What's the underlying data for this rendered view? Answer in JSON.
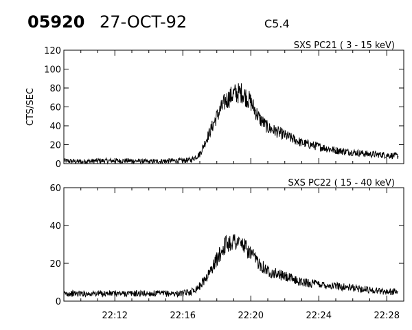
{
  "header": {
    "event_id": "05920",
    "date": "27-OCT-92",
    "goes_class": "C5.4"
  },
  "chart_data": [
    {
      "type": "line",
      "panel_label": "SXS PC21  (  3 - 15 keV)",
      "ylabel": "CTS/SEC",
      "xlabel": "",
      "xlim": [
        "22:09",
        "22:29"
      ],
      "ylim": [
        0,
        120
      ],
      "yticks": [
        0,
        20,
        40,
        60,
        80,
        100,
        120
      ],
      "grid": false,
      "series": [
        {
          "x": [
            "22:09",
            "22:10",
            "22:11",
            "22:12",
            "22:13",
            "22:14",
            "22:15",
            "22:16",
            "22:16:30",
            "22:17",
            "22:17:30",
            "22:18",
            "22:18:30",
            "22:19",
            "22:19:30",
            "22:20",
            "22:20:30",
            "22:21",
            "22:22",
            "22:23",
            "22:24",
            "22:25",
            "22:26",
            "22:27",
            "22:28",
            "22:28:40"
          ],
          "values": [
            3,
            2,
            3,
            3,
            3,
            2,
            3,
            3,
            4,
            10,
            30,
            50,
            66,
            74,
            75,
            65,
            48,
            38,
            30,
            22,
            18,
            14,
            12,
            10,
            9,
            8
          ]
        }
      ]
    },
    {
      "type": "line",
      "panel_label": "SXS PC22  ( 15 - 40 keV)",
      "ylabel": "",
      "xlabel": "",
      "xlim": [
        "22:09",
        "22:29"
      ],
      "ylim": [
        0,
        60
      ],
      "yticks": [
        0,
        20,
        40,
        60
      ],
      "xticks": [
        "22:12",
        "22:16",
        "22:20",
        "22:24",
        "22:28"
      ],
      "grid": false,
      "series": [
        {
          "x": [
            "22:09",
            "22:10",
            "22:11",
            "22:12",
            "22:13",
            "22:14",
            "22:15",
            "22:16",
            "22:16:30",
            "22:17",
            "22:17:30",
            "22:18",
            "22:18:30",
            "22:19",
            "22:19:30",
            "22:20",
            "22:20:30",
            "22:21",
            "22:22",
            "22:23",
            "22:24",
            "22:25",
            "22:26",
            "22:27",
            "22:28",
            "22:28:40"
          ],
          "values": [
            4,
            4,
            4,
            4,
            4,
            4,
            4,
            4,
            5,
            8,
            14,
            22,
            30,
            32,
            30,
            25,
            20,
            16,
            13,
            10,
            9,
            8,
            7,
            6,
            5,
            5
          ]
        }
      ]
    }
  ]
}
